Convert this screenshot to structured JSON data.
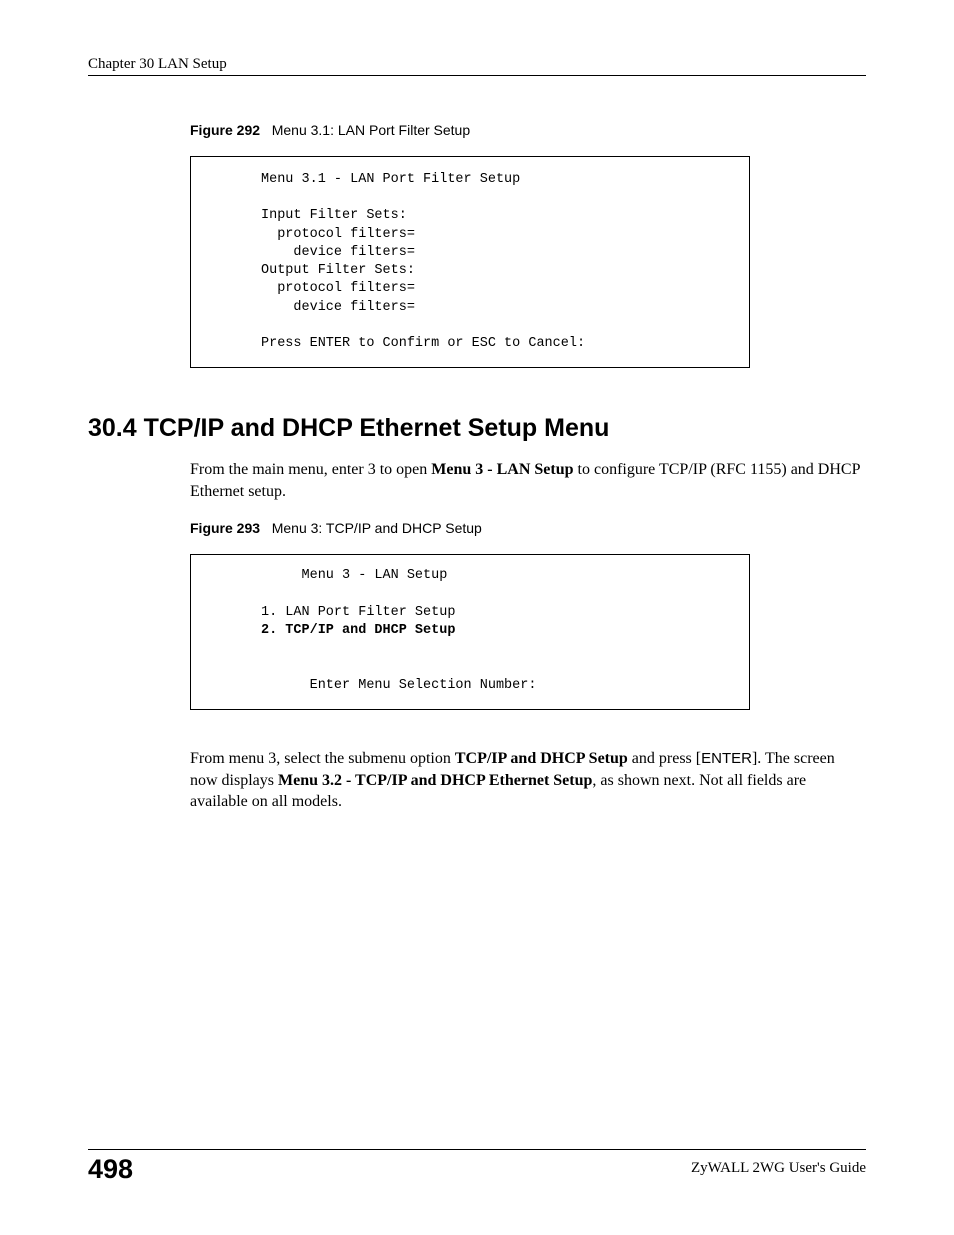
{
  "header": {
    "chapter": "Chapter 30 LAN Setup"
  },
  "figure292": {
    "label": "Figure 292",
    "caption": "Menu 3.1: LAN Port Filter Setup",
    "terminal": {
      "title": "Menu 3.1 - LAN Port Filter Setup",
      "line1": "Input Filter Sets:",
      "line2": "  protocol filters=",
      "line3": "    device filters=",
      "line4": "Output Filter Sets:",
      "line5": "  protocol filters=",
      "line6": "    device filters=",
      "prompt": "Press ENTER to Confirm or ESC to Cancel:"
    }
  },
  "section": {
    "heading": "30.4  TCP/IP and DHCP Ethernet Setup Menu",
    "para1_pre": "From the main menu, enter 3 to open ",
    "para1_bold": "Menu 3 - LAN Setup",
    "para1_post": " to configure TCP/IP (RFC 1155) and DHCP Ethernet setup."
  },
  "figure293": {
    "label": "Figure 293",
    "caption": "Menu 3: TCP/IP and DHCP Setup",
    "terminal": {
      "title": "     Menu 3 - LAN Setup",
      "item1": "1. LAN Port Filter Setup",
      "item2": "2. TCP/IP and DHCP Setup",
      "prompt": "      Enter Menu Selection Number:"
    }
  },
  "para2": {
    "t1": "From menu 3, select the submenu option ",
    "b1": "TCP/IP and DHCP Setup",
    "t2": " and press [",
    "s1": "ENTER",
    "t3": "]. The screen now displays ",
    "b2": "Menu 3.2 - TCP/IP and DHCP Ethernet Setup",
    "t4": ", as shown next. Not all fields are available on all models."
  },
  "footer": {
    "page": "498",
    "guide": "ZyWALL 2WG User's Guide"
  }
}
